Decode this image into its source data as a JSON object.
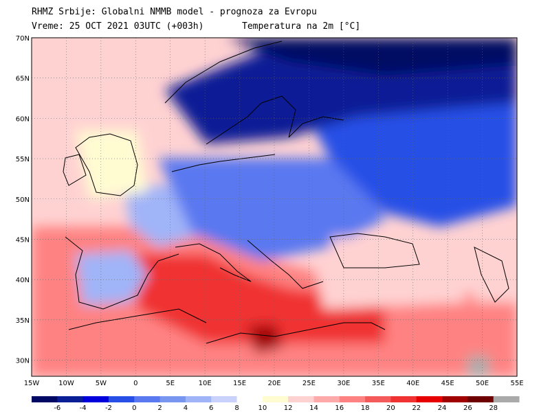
{
  "header": {
    "line1": "RHMZ Srbije: Globalni NMMB model - prognoza za Evropu",
    "line2": "Vreme: 25 OCT 2021 03UTC (+003h)",
    "field": "Temperatura na 2m [°C]"
  },
  "axes": {
    "lat_labels": [
      "70N",
      "65N",
      "60N",
      "55N",
      "50N",
      "45N",
      "40N",
      "35N",
      "30N"
    ],
    "lat_values": [
      70,
      65,
      60,
      55,
      50,
      45,
      40,
      35,
      30
    ],
    "lon_labels": [
      "15W",
      "10W",
      "5W",
      "0",
      "5E",
      "10E",
      "15E",
      "20E",
      "25E",
      "30E",
      "35E",
      "40E",
      "45E",
      "50E",
      "55E"
    ],
    "lon_values": [
      -15,
      -10,
      -5,
      0,
      5,
      10,
      15,
      20,
      25,
      30,
      35,
      40,
      45,
      50,
      55
    ],
    "lon_range": [
      -15,
      55
    ],
    "lat_range": [
      28,
      70
    ]
  },
  "colorbar": {
    "labels": [
      "-6",
      "-4",
      "-2",
      "0",
      "2",
      "4",
      "6",
      "8",
      "10",
      "12",
      "14",
      "16",
      "18",
      "20",
      "22",
      "24",
      "26",
      "28"
    ],
    "colors": [
      "#000a64",
      "#0a1e96",
      "#0000dc",
      "#2850e6",
      "#5a78f0",
      "#7896f0",
      "#a0b4f8",
      "#c8d2fc",
      "#ffffff",
      "#fffcd2",
      "#ffd2d2",
      "#ffaaaa",
      "#ff8282",
      "#f55a5a",
      "#f03232",
      "#e60000",
      "#a00000",
      "#6e0000",
      "#aaaaaa"
    ]
  },
  "regions": {
    "colors": {
      "atlantic": "#ffd2d2",
      "south": "#ff8282",
      "med": "#f03232",
      "libya_hot": "#a00000",
      "iberia": "#a0b4f8",
      "france": "#a0b4f8",
      "central": "#5a78f0",
      "east": "#2850e6",
      "north": "#0a1e96",
      "arctic": "#000a64",
      "black_sea": "#ffd2d2",
      "uk": "#fffcd2",
      "gulf": "#aaaaaa"
    }
  }
}
